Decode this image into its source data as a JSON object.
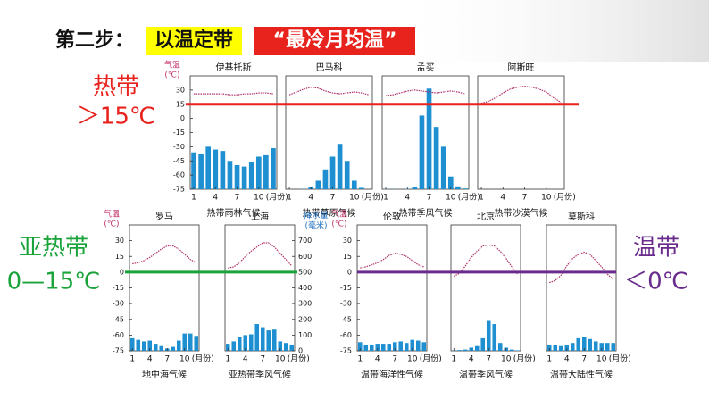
{
  "slide": {
    "step": "第二步：",
    "method": "以温定带",
    "criterion": "“最冷月均温”",
    "zones": [
      {
        "name": "热带",
        "label": "＞15℃",
        "color": "#e8221c",
        "value": 15
      },
      {
        "name": "亚热带",
        "label": "0—15℃",
        "color": "#1aa33a",
        "value": 0
      },
      {
        "name": "温带",
        "label": "＜0℃",
        "color": "#6a2c8c",
        "value": 0
      }
    ]
  },
  "chart_data": [
    {
      "type": "climate",
      "title": "伊基托斯",
      "caption": "热带雨林气候",
      "x": [
        1,
        2,
        3,
        4,
        5,
        6,
        7,
        8,
        9,
        10,
        11,
        12
      ],
      "xlim": [
        0.5,
        12.5
      ],
      "xticks": [
        1,
        4,
        7,
        10
      ],
      "x_unit": "(月份)",
      "y_label": [
        "气温",
        "(℃)"
      ],
      "ylim": [
        -75,
        45
      ],
      "yticks": [
        30,
        15,
        0,
        -15,
        -30,
        -45,
        -60,
        -75
      ],
      "y2lim": [
        0,
        800
      ],
      "temperature": [
        26,
        26,
        26,
        26,
        26,
        25,
        25,
        26,
        26,
        27,
        27,
        26
      ],
      "precipitation": [
        260,
        250,
        300,
        280,
        270,
        200,
        170,
        160,
        190,
        230,
        240,
        290
      ],
      "temp_color": "#b0306a",
      "precip_color": "#1e8fd0"
    },
    {
      "type": "climate",
      "title": "巴马科",
      "caption": "热带草原气候",
      "x": [
        1,
        2,
        3,
        4,
        5,
        6,
        7,
        8,
        9,
        10,
        11,
        12
      ],
      "xlim": [
        0.5,
        12.5
      ],
      "xticks": [
        1,
        4,
        7,
        10
      ],
      "x_unit": "(月份)",
      "ylim": [
        -75,
        45
      ],
      "y2lim": [
        0,
        800
      ],
      "temperature": [
        25,
        28,
        31,
        33,
        32,
        29,
        27,
        26,
        27,
        28,
        27,
        25
      ],
      "precipitation": [
        0,
        0,
        3,
        15,
        60,
        140,
        230,
        320,
        200,
        60,
        10,
        0
      ],
      "temp_color": "#b0306a",
      "precip_color": "#1e8fd0"
    },
    {
      "type": "climate",
      "title": "孟买",
      "caption": "热带季风气候",
      "x": [
        1,
        2,
        3,
        4,
        5,
        6,
        7,
        8,
        9,
        10,
        11,
        12
      ],
      "xlim": [
        0.5,
        12.5
      ],
      "xticks": [
        1,
        4,
        7,
        10
      ],
      "x_unit": "(月份)",
      "ylim": [
        -75,
        45
      ],
      "y2lim": [
        0,
        800
      ],
      "temperature": [
        24,
        25,
        27,
        29,
        30,
        29,
        28,
        27,
        28,
        29,
        28,
        26
      ],
      "precipitation": [
        2,
        1,
        0,
        3,
        15,
        520,
        710,
        440,
        300,
        90,
        20,
        5
      ],
      "temp_color": "#b0306a",
      "precip_color": "#1e8fd0"
    },
    {
      "type": "climate",
      "title": "阿斯旺",
      "caption": "热带沙漠气候",
      "x": [
        1,
        2,
        3,
        4,
        5,
        6,
        7,
        8,
        9,
        10,
        11,
        12
      ],
      "xlim": [
        0.5,
        12.5
      ],
      "xticks": [
        1,
        4,
        7,
        10
      ],
      "x_unit": "(月份)",
      "ylim": [
        -75,
        45
      ],
      "y2lim": [
        0,
        800
      ],
      "temperature": [
        16,
        18,
        22,
        27,
        31,
        33,
        34,
        33,
        31,
        28,
        22,
        17
      ],
      "precipitation": [
        0,
        0,
        0,
        0,
        0,
        0,
        0,
        0,
        0,
        0,
        0,
        0
      ],
      "temp_color": "#b0306a",
      "precip_color": "#1e8fd0"
    },
    {
      "type": "climate",
      "title": "罗马",
      "caption": "地中海气候",
      "x": [
        1,
        2,
        3,
        4,
        5,
        6,
        7,
        8,
        9,
        10,
        11,
        12
      ],
      "xlim": [
        0.5,
        12.5
      ],
      "xticks": [
        1,
        4,
        7,
        10
      ],
      "x_unit": "(月份)",
      "y_label": [
        "气温",
        "(℃)"
      ],
      "ylim": [
        -75,
        45
      ],
      "yticks": [
        30,
        15,
        0,
        -15,
        -30,
        -45,
        -60,
        -75
      ],
      "y2lim": [
        0,
        800
      ],
      "temperature": [
        8,
        9,
        11,
        14,
        18,
        22,
        25,
        25,
        22,
        17,
        12,
        9
      ],
      "precipitation": [
        80,
        70,
        60,
        65,
        45,
        30,
        15,
        25,
        65,
        110,
        110,
        95
      ],
      "temp_color": "#b0306a",
      "precip_color": "#1e8fd0"
    },
    {
      "type": "climate",
      "title": "上海",
      "caption": "亚热带季风气候",
      "x": [
        1,
        2,
        3,
        4,
        5,
        6,
        7,
        8,
        9,
        10,
        11,
        12
      ],
      "xlim": [
        0.5,
        12.5
      ],
      "xticks": [
        1,
        4,
        7,
        10
      ],
      "x_unit": "(月份)",
      "ylim": [
        -75,
        45
      ],
      "y2lim": [
        0,
        800
      ],
      "y2_label": [
        "降水量",
        "(毫米)"
      ],
      "y2ticks": [
        700,
        600,
        500,
        400,
        300,
        200,
        100,
        0
      ],
      "temperature": [
        4,
        5,
        9,
        15,
        20,
        24,
        28,
        28,
        24,
        18,
        12,
        6
      ],
      "precipitation": [
        45,
        60,
        90,
        100,
        105,
        170,
        150,
        130,
        135,
        60,
        50,
        40
      ],
      "temp_color": "#b0306a",
      "precip_color": "#1e8fd0"
    },
    {
      "type": "climate",
      "title": "伦敦",
      "caption": "温带海洋性气候",
      "x": [
        1,
        2,
        3,
        4,
        5,
        6,
        7,
        8,
        9,
        10,
        11,
        12
      ],
      "xlim": [
        0.5,
        12.5
      ],
      "xticks": [
        1,
        4,
        7,
        10
      ],
      "x_unit": "(月份)",
      "y_label": [
        "气温",
        "(℃)"
      ],
      "ylim": [
        -75,
        45
      ],
      "yticks": [
        30,
        15,
        0,
        -15,
        -30,
        -45,
        -60,
        -75
      ],
      "y2lim": [
        0,
        800
      ],
      "temperature": [
        4,
        5,
        7,
        9,
        12,
        16,
        18,
        17,
        15,
        11,
        7,
        5
      ],
      "precipitation": [
        55,
        40,
        40,
        45,
        45,
        45,
        55,
        60,
        50,
        70,
        65,
        55
      ],
      "temp_color": "#b0306a",
      "precip_color": "#1e8fd0"
    },
    {
      "type": "climate",
      "title": "北京",
      "caption": "温带季风气候",
      "x": [
        1,
        2,
        3,
        4,
        5,
        6,
        7,
        8,
        9,
        10,
        11,
        12
      ],
      "xlim": [
        0.5,
        12.5
      ],
      "xticks": [
        1,
        4,
        7,
        10
      ],
      "x_unit": "(月份)",
      "ylim": [
        -75,
        45
      ],
      "y2lim": [
        0,
        800
      ],
      "temperature": [
        -4,
        -1,
        6,
        14,
        20,
        25,
        26,
        25,
        20,
        13,
        5,
        -2
      ],
      "precipitation": [
        3,
        5,
        8,
        20,
        30,
        80,
        190,
        170,
        50,
        20,
        8,
        3
      ],
      "temp_color": "#b0306a",
      "precip_color": "#1e8fd0"
    },
    {
      "type": "climate",
      "title": "莫斯科",
      "caption": "温带大陆性气候",
      "x": [
        1,
        2,
        3,
        4,
        5,
        6,
        7,
        8,
        9,
        10,
        11,
        12
      ],
      "xlim": [
        0.5,
        12.5
      ],
      "xticks": [
        1,
        4,
        7,
        10
      ],
      "x_unit": "(月份)",
      "ylim": [
        -75,
        45
      ],
      "y2lim": [
        0,
        800
      ],
      "temperature": [
        -10,
        -8,
        -3,
        6,
        13,
        17,
        19,
        17,
        11,
        5,
        -2,
        -7
      ],
      "precipitation": [
        40,
        35,
        30,
        35,
        50,
        80,
        90,
        75,
        60,
        50,
        50,
        50
      ],
      "temp_color": "#b0306a",
      "precip_color": "#1e8fd0"
    }
  ]
}
